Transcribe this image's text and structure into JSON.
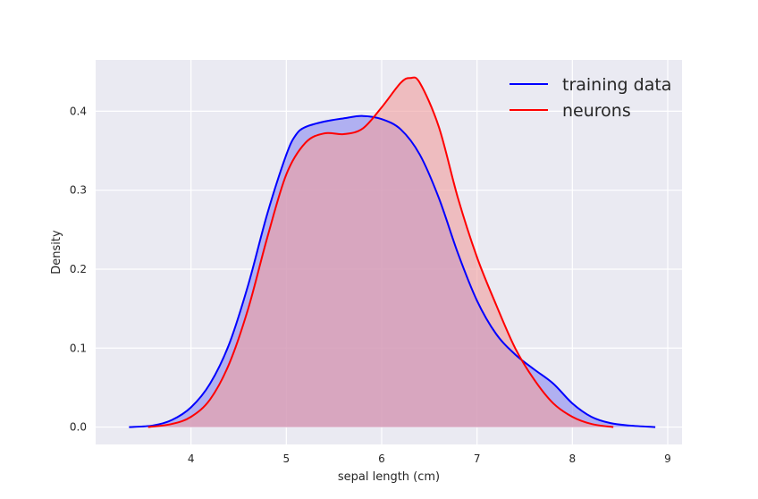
{
  "chart_data": {
    "type": "area",
    "xlabel": "sepal length (cm)",
    "ylabel": "Density",
    "xlim": [
      3.0,
      9.15
    ],
    "ylim": [
      -0.022,
      0.465
    ],
    "xticks": [
      "4",
      "5",
      "6",
      "7",
      "8",
      "9"
    ],
    "yticks": [
      "0.0",
      "0.1",
      "0.2",
      "0.3",
      "0.4"
    ],
    "grid": true,
    "legend_position": "top-right",
    "plot_background": "#eaeaf2",
    "series": [
      {
        "name": "training data",
        "color": "#0000ff",
        "fill_color": "#8c8cf0",
        "points": [
          [
            3.35,
            0.0
          ],
          [
            3.6,
            0.002
          ],
          [
            3.8,
            0.009
          ],
          [
            4.0,
            0.025
          ],
          [
            4.2,
            0.055
          ],
          [
            4.4,
            0.105
          ],
          [
            4.6,
            0.18
          ],
          [
            4.8,
            0.27
          ],
          [
            5.0,
            0.345
          ],
          [
            5.1,
            0.37
          ],
          [
            5.2,
            0.38
          ],
          [
            5.4,
            0.387
          ],
          [
            5.6,
            0.391
          ],
          [
            5.8,
            0.394
          ],
          [
            6.0,
            0.39
          ],
          [
            6.2,
            0.377
          ],
          [
            6.4,
            0.345
          ],
          [
            6.6,
            0.29
          ],
          [
            6.8,
            0.22
          ],
          [
            7.0,
            0.16
          ],
          [
            7.2,
            0.118
          ],
          [
            7.4,
            0.092
          ],
          [
            7.6,
            0.073
          ],
          [
            7.8,
            0.055
          ],
          [
            8.0,
            0.03
          ],
          [
            8.2,
            0.013
          ],
          [
            8.4,
            0.005
          ],
          [
            8.6,
            0.002
          ],
          [
            8.87,
            0.0
          ]
        ]
      },
      {
        "name": "neurons",
        "color": "#ff0000",
        "fill_color": "#f0a0a0",
        "points": [
          [
            3.55,
            0.0
          ],
          [
            3.8,
            0.004
          ],
          [
            4.0,
            0.013
          ],
          [
            4.2,
            0.035
          ],
          [
            4.4,
            0.08
          ],
          [
            4.6,
            0.15
          ],
          [
            4.8,
            0.24
          ],
          [
            5.0,
            0.32
          ],
          [
            5.2,
            0.36
          ],
          [
            5.4,
            0.372
          ],
          [
            5.6,
            0.371
          ],
          [
            5.8,
            0.378
          ],
          [
            6.0,
            0.405
          ],
          [
            6.2,
            0.436
          ],
          [
            6.3,
            0.442
          ],
          [
            6.4,
            0.436
          ],
          [
            6.6,
            0.38
          ],
          [
            6.8,
            0.29
          ],
          [
            7.0,
            0.215
          ],
          [
            7.2,
            0.155
          ],
          [
            7.4,
            0.1
          ],
          [
            7.6,
            0.06
          ],
          [
            7.8,
            0.03
          ],
          [
            8.0,
            0.013
          ],
          [
            8.2,
            0.004
          ],
          [
            8.43,
            0.0
          ]
        ]
      }
    ]
  }
}
